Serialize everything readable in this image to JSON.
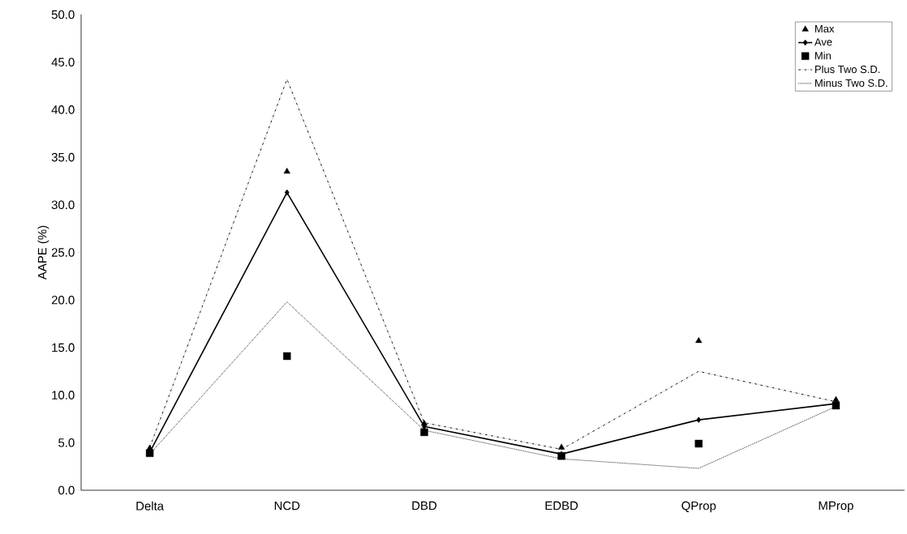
{
  "chart_data": {
    "type": "line",
    "ylabel": "AAPE (%)",
    "categories": [
      "Delta",
      "NCD",
      "DBD",
      "EDBD",
      "QProp",
      "MProp"
    ],
    "series": [
      {
        "name": "Max",
        "type": "scatter",
        "marker": "triangle",
        "color": "#000000",
        "values": [
          4.4,
          33.5,
          7.0,
          4.5,
          15.7,
          9.5
        ]
      },
      {
        "name": "Ave",
        "marker": "diamond",
        "line_style": "solid",
        "color": "#000000",
        "values": [
          4.0,
          31.3,
          6.7,
          3.8,
          7.4,
          9.1
        ]
      },
      {
        "name": "Min",
        "type": "scatter",
        "marker": "square",
        "color": "#000000",
        "values": [
          3.9,
          14.1,
          6.1,
          3.6,
          4.9,
          8.9
        ]
      },
      {
        "name": "Plus Two S.D.",
        "marker": "none",
        "line_style": "dashed",
        "color": "#000000",
        "values": [
          4.5,
          43.2,
          7.1,
          4.3,
          12.5,
          9.3
        ]
      },
      {
        "name": "Minus Two S.D.",
        "marker": "none",
        "line_style": "dotted",
        "color": "#000000",
        "values": [
          3.8,
          19.8,
          6.3,
          3.3,
          2.3,
          8.8
        ]
      }
    ],
    "ylim": [
      0,
      50
    ],
    "yticks": [
      {
        "value": 0,
        "label": "0.0"
      },
      {
        "value": 5,
        "label": "5.0"
      },
      {
        "value": 10,
        "label": "10.0"
      },
      {
        "value": 15,
        "label": "15.0"
      },
      {
        "value": 20,
        "label": "20.0"
      },
      {
        "value": 25,
        "label": "25.0"
      },
      {
        "value": 30,
        "label": "30.0"
      },
      {
        "value": 35,
        "label": "35.0"
      },
      {
        "value": 40,
        "label": "40.0"
      },
      {
        "value": 45,
        "label": "45.0"
      },
      {
        "value": 50,
        "label": "50.0"
      }
    ],
    "grid": false,
    "legend": "top right"
  }
}
